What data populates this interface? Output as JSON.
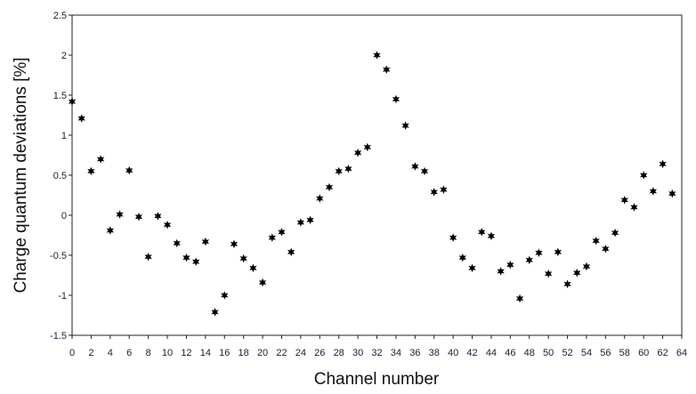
{
  "chart_data": {
    "type": "scatter",
    "xlabel": "Channel number",
    "ylabel": "Charge quantum deviations [%]",
    "xlim": [
      0,
      64
    ],
    "ylim": [
      -1.5,
      2.5
    ],
    "xticks": [
      0,
      2,
      4,
      6,
      8,
      10,
      12,
      14,
      16,
      18,
      20,
      22,
      24,
      26,
      28,
      30,
      32,
      34,
      36,
      38,
      40,
      42,
      44,
      46,
      48,
      50,
      52,
      54,
      56,
      58,
      60,
      62,
      64
    ],
    "yticks": [
      -1.5,
      -1,
      -0.5,
      0,
      0.5,
      1,
      1.5,
      2,
      2.5
    ],
    "ytick_labels": [
      "-1.5",
      "-1",
      "-0.5",
      "0",
      "0.5",
      "1",
      "1.5",
      "2",
      "2.5"
    ],
    "grid": false,
    "marker": "star",
    "series": [
      {
        "x": [
          0,
          1,
          2,
          3,
          4,
          5,
          6,
          7,
          8,
          9,
          10,
          11,
          12,
          13,
          14,
          15,
          16,
          17,
          18,
          19,
          20,
          21,
          22,
          23,
          24,
          25,
          26,
          27,
          28,
          29,
          30,
          31,
          32,
          33,
          34,
          35,
          36,
          37,
          38,
          39,
          40,
          41,
          42,
          43,
          44,
          45,
          46,
          47,
          48,
          49,
          50,
          51,
          52,
          53,
          54,
          55,
          56,
          57,
          58,
          59,
          60,
          61,
          62,
          63
        ],
        "y": [
          1.42,
          1.21,
          0.55,
          0.7,
          -0.19,
          0.01,
          0.56,
          -0.02,
          -0.52,
          -0.01,
          -0.12,
          -0.35,
          -0.53,
          -0.58,
          -0.33,
          -1.21,
          -1.0,
          -0.36,
          -0.54,
          -0.66,
          -0.84,
          -0.28,
          -0.21,
          -0.46,
          -0.09,
          -0.06,
          0.21,
          0.35,
          0.55,
          0.58,
          0.78,
          0.85,
          2.0,
          1.82,
          1.45,
          1.12,
          0.61,
          0.55,
          0.29,
          0.32,
          -0.28,
          -0.53,
          -0.66,
          -0.21,
          -0.26,
          -0.7,
          -0.62,
          -1.04,
          -0.56,
          -0.47,
          -0.73,
          -0.46,
          -0.86,
          -0.72,
          -0.64,
          -0.32,
          -0.42,
          -0.22,
          0.19,
          0.1,
          0.5,
          0.3,
          0.64,
          0.27
        ]
      }
    ]
  }
}
